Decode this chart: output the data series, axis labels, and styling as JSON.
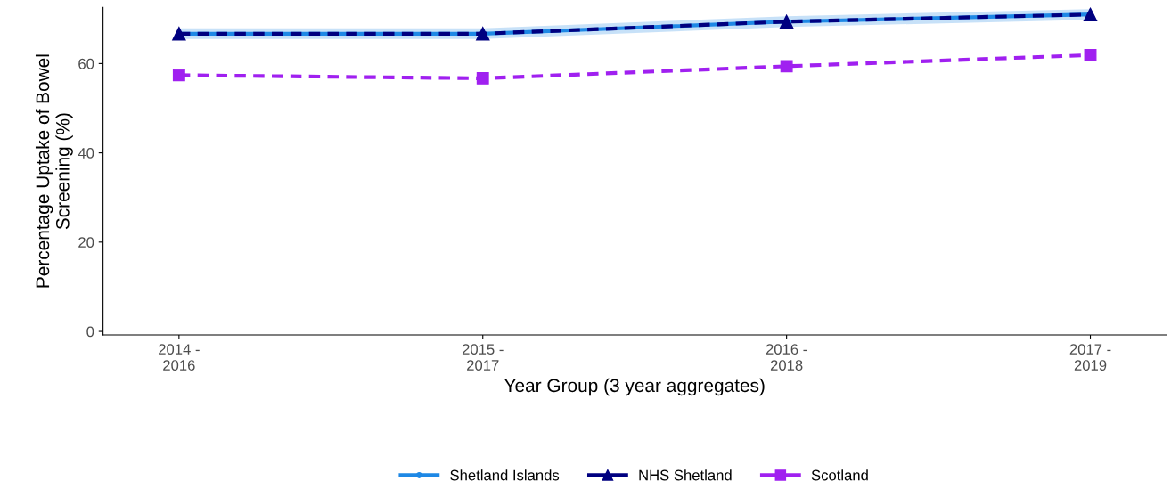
{
  "chart_data": {
    "type": "line",
    "xlabel": "Year Group (3 year aggregates)",
    "ylabel": "Percentage Uptake of Bowel\nScreening (%)",
    "categories": [
      "2014 -\n2016",
      "2015 -\n2017",
      "2016 -\n2018",
      "2017 -\n2019"
    ],
    "series": [
      {
        "name": "Shetland Islands",
        "color": "#1e88e5",
        "values": [
          66.7,
          66.7,
          69.4,
          71.0
        ],
        "lower": [
          65.5,
          65.5,
          68.2,
          69.8
        ],
        "upper": [
          67.9,
          67.9,
          70.6,
          72.2
        ],
        "marker": "circle",
        "line_style": "solid"
      },
      {
        "name": "NHS Shetland",
        "color": "#000080",
        "values": [
          66.7,
          66.7,
          69.4,
          71.0
        ],
        "marker": "triangle",
        "line_style": "dashed"
      },
      {
        "name": "Scotland",
        "color": "#a020f0",
        "values": [
          57.4,
          56.7,
          59.4,
          61.9
        ],
        "marker": "square",
        "line_style": "dashed"
      }
    ],
    "ylim": [
      -0.8,
      72.6
    ],
    "yticks": [
      0,
      20,
      40,
      60
    ],
    "grid": false,
    "legend": "bottom"
  }
}
